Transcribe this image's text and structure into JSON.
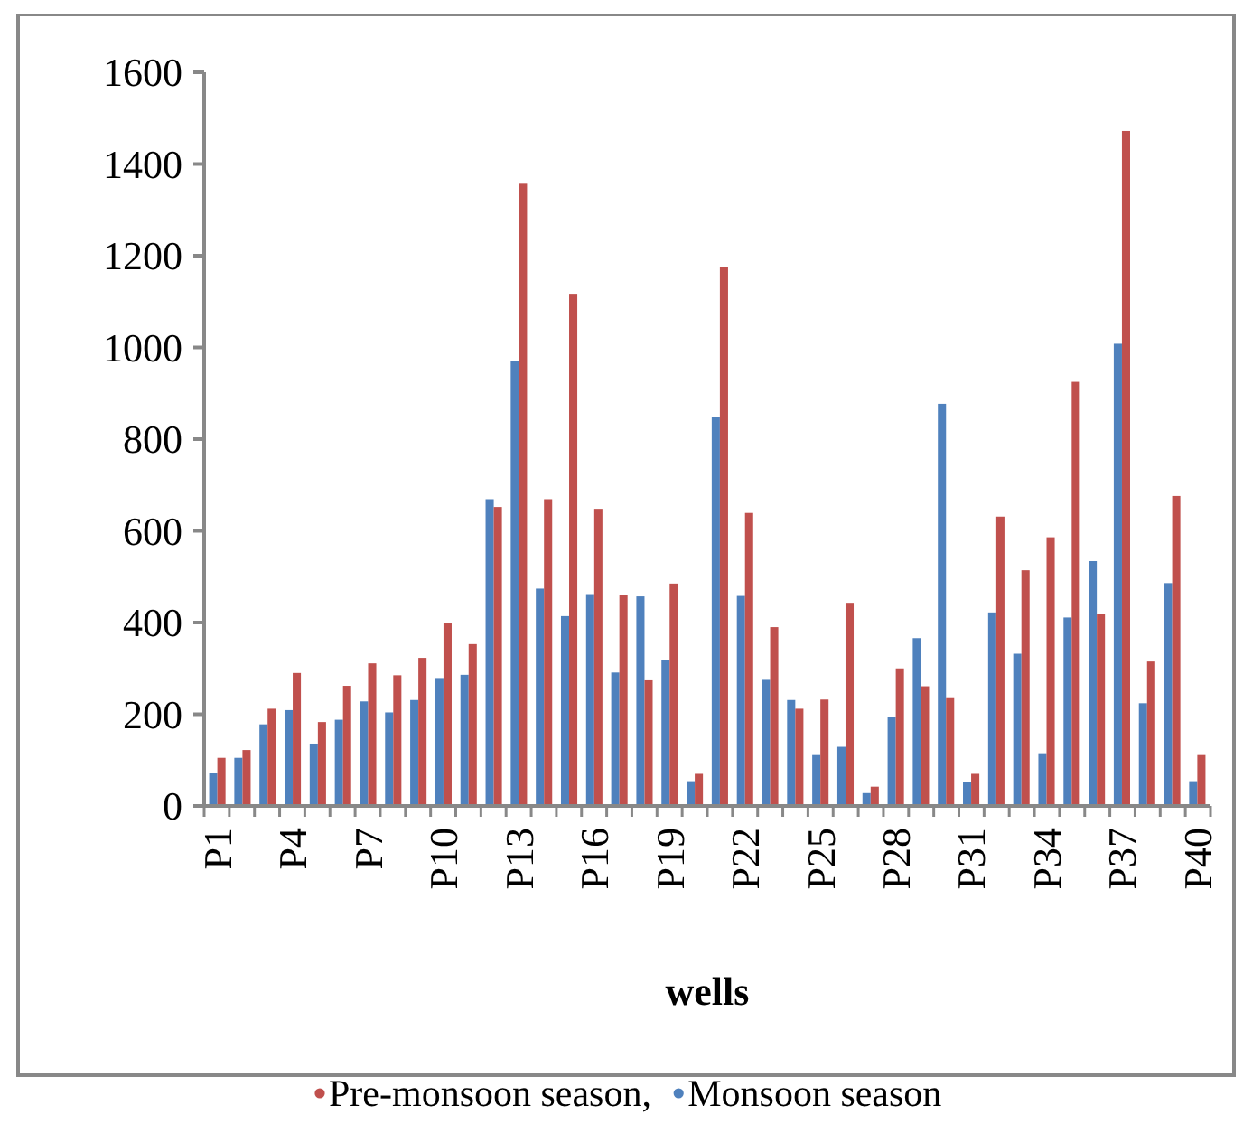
{
  "chart_data": {
    "type": "bar",
    "xlabel": "wells",
    "categories": [
      "P1",
      null,
      null,
      "P4",
      null,
      null,
      "P7",
      null,
      null,
      "P10",
      null,
      null,
      "P13",
      null,
      null,
      "P16",
      null,
      null,
      "P19",
      null,
      null,
      "P22",
      null,
      null,
      "P25",
      null,
      null,
      "P28",
      null,
      null,
      "P31",
      null,
      null,
      "P34",
      null,
      null,
      "P37",
      null,
      null,
      "P40"
    ],
    "series": [
      {
        "name": "Monsoon season",
        "color": "#4f81bd",
        "values": [
          72,
          105,
          178,
          209,
          136,
          188,
          228,
          204,
          231,
          279,
          286,
          669,
          971,
          474,
          414,
          462,
          291,
          457,
          318,
          54,
          848,
          458,
          275,
          231,
          111,
          129,
          28,
          194,
          366,
          877,
          53,
          422,
          332,
          115,
          411,
          534,
          1008,
          224,
          486,
          54
        ]
      },
      {
        "name": "Pre-monsoon season,",
        "color": "#c0504d",
        "values": [
          105,
          122,
          212,
          290,
          183,
          262,
          311,
          285,
          323,
          398,
          353,
          652,
          1357,
          669,
          1117,
          648,
          460,
          274,
          485,
          70,
          1175,
          639,
          390,
          212,
          232,
          443,
          42,
          300,
          261,
          237,
          70,
          631,
          514,
          586,
          925,
          419,
          1472,
          315,
          676,
          111
        ]
      }
    ],
    "ylim": [
      0,
      1600
    ],
    "yticks": [
      0,
      200,
      400,
      600,
      800,
      1000,
      1200,
      1400,
      1600
    ],
    "grid": false,
    "legend": "bottom"
  }
}
